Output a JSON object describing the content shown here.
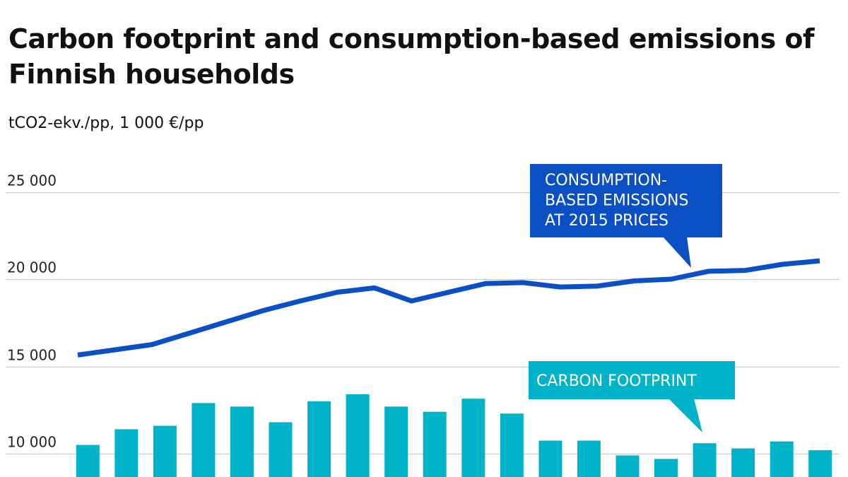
{
  "chart_data": {
    "type": "bar+line",
    "title": "Carbon footprint and consumption-based emissions of Finnish households",
    "subtitle": "tCO2-ekv./pp, 1 000 €/pp",
    "ylim": [
      9000,
      25000
    ],
    "y_ticks": [
      10000,
      15000,
      20000,
      25000
    ],
    "y_tick_labels": [
      "10 000",
      "15 000",
      "20 000",
      "25 000"
    ],
    "grid": true,
    "series": [
      {
        "name": "Carbon footprint",
        "type": "bar",
        "color": "#00b3c9",
        "values": [
          10500,
          11400,
          11600,
          12900,
          12700,
          11800,
          13000,
          13400,
          12700,
          12400,
          13150,
          12300,
          10750,
          10750,
          9900,
          9700,
          10600,
          10300,
          10700,
          10200
        ]
      },
      {
        "name": "Consumption-based emissions at 2015 prices",
        "type": "line",
        "color": "#0a4fc4",
        "values": [
          15650,
          15950,
          16250,
          16900,
          17550,
          18200,
          18750,
          19250,
          19500,
          18750,
          19250,
          19750,
          19800,
          19550,
          19600,
          19900,
          20000,
          20450,
          20500,
          20850,
          21050
        ]
      }
    ],
    "annotations": [
      {
        "series": "Consumption-based emissions at 2015 prices",
        "lines": [
          "CONSUMPTION-",
          "BASED EMISSIONS",
          "AT 2015 PRICES"
        ],
        "color": "#0a4fc4"
      },
      {
        "series": "Carbon footprint",
        "lines": [
          "CARBON FOOTPRINT"
        ],
        "color": "#00b3c9"
      }
    ]
  }
}
